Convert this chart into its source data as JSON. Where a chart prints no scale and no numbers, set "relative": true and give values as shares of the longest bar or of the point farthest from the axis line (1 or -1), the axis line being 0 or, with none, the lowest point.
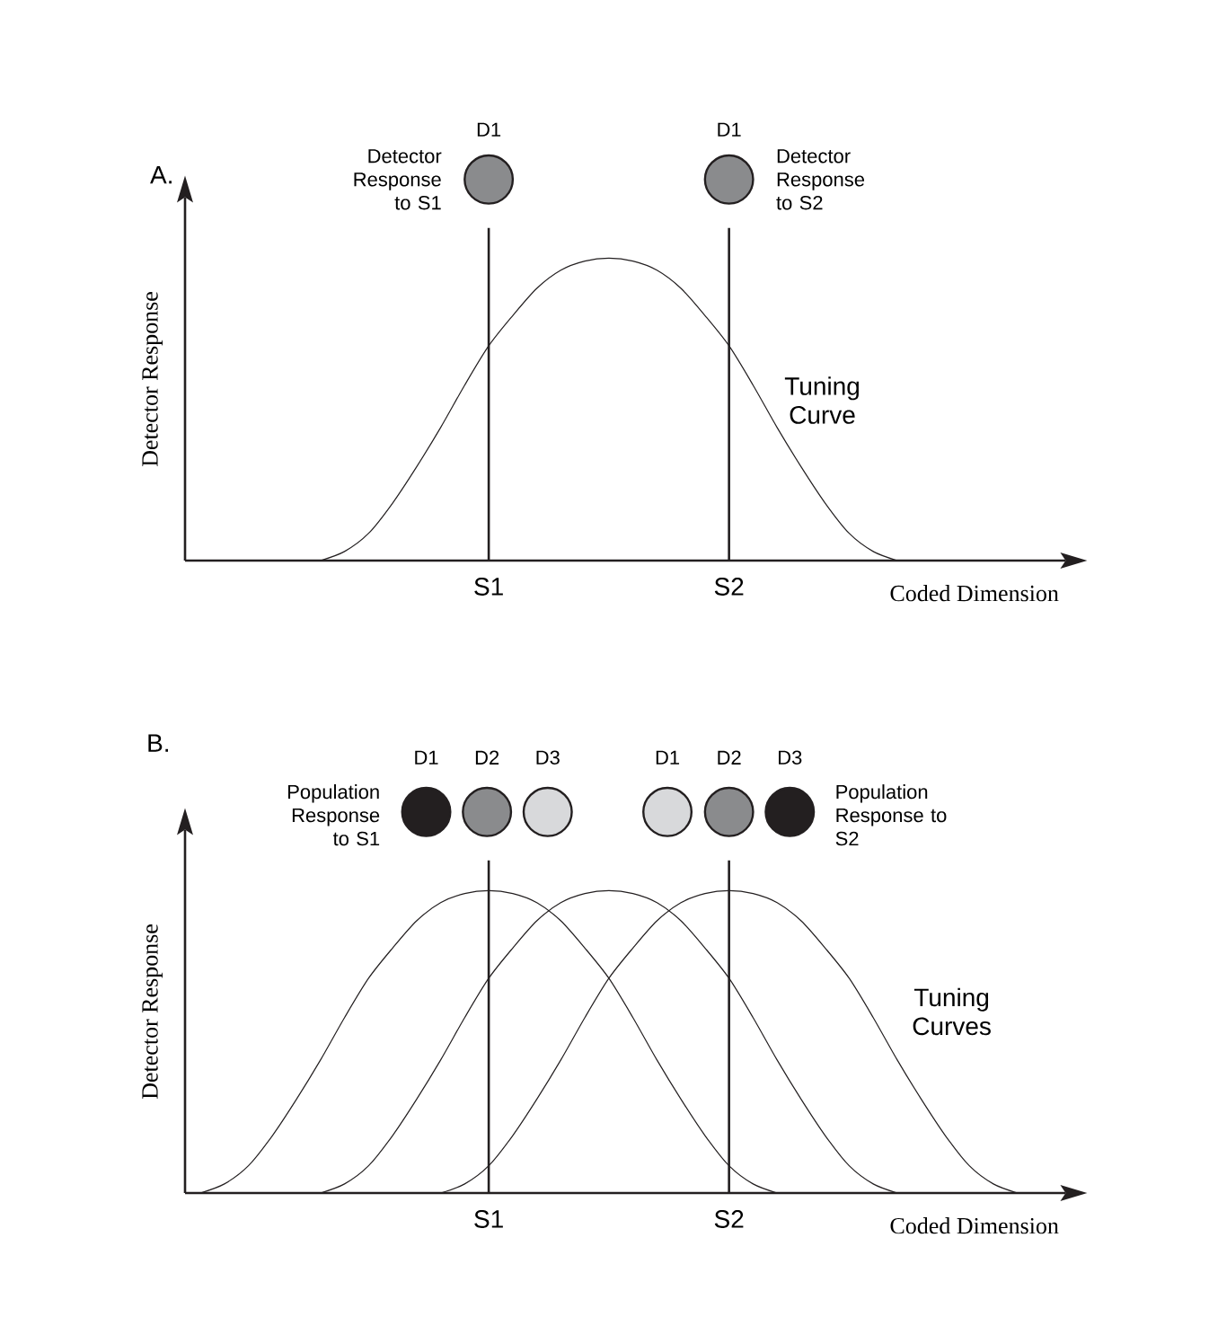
{
  "chart_data": [
    {
      "type": "line",
      "relative": true,
      "title": "A.",
      "xlabel": "Coded Dimension",
      "ylabel": "Detector Response",
      "categories": [
        null,
        null,
        null,
        null,
        null,
        null,
        null,
        null,
        null,
        null,
        null,
        null,
        null,
        "S1",
        null,
        null,
        null,
        null,
        null,
        null,
        null,
        null,
        null,
        "S2",
        null,
        null,
        null,
        null,
        null,
        null,
        null,
        null,
        null,
        null,
        null,
        null,
        null
      ],
      "ref_lines": [
        {
          "axis": "x",
          "value": "S1",
          "color": "#231f20"
        },
        {
          "axis": "x",
          "value": "S2",
          "color": "#231f20"
        }
      ],
      "series": [
        {
          "color": "#231f20",
          "values": [
            null,
            null,
            null,
            null,
            null,
            null,
            0,
            0.03,
            0.09,
            0.19,
            0.31,
            0.44,
            0.58,
            0.71,
            0.81,
            0.9,
            0.96,
            0.99,
            1,
            0.99,
            0.96,
            0.9,
            0.81,
            0.71,
            0.58,
            0.44,
            0.31,
            0.19,
            0.09,
            0.03,
            0,
            null,
            null,
            null,
            null,
            null,
            null
          ]
        }
      ],
      "annotations": [
        "D1",
        "Detector Response to S1",
        "D1",
        "Detector Response to S2",
        "Tuning Curve"
      ]
    },
    {
      "type": "line",
      "relative": true,
      "title": "B.",
      "xlabel": "Coded Dimension",
      "ylabel": "Detector Response",
      "categories": [
        null,
        null,
        null,
        null,
        null,
        null,
        null,
        null,
        null,
        null,
        null,
        null,
        null,
        "S1",
        null,
        null,
        null,
        null,
        null,
        null,
        null,
        null,
        null,
        "S2",
        null,
        null,
        null,
        null,
        null,
        null,
        null,
        null,
        null,
        null,
        null,
        null,
        null
      ],
      "ref_lines": [
        {
          "axis": "x",
          "value": "S1",
          "color": "#231f20"
        },
        {
          "axis": "x",
          "value": "S2",
          "color": "#231f20"
        }
      ],
      "series": [
        {
          "color": "#231f20",
          "values": [
            null,
            0,
            0.03,
            0.09,
            0.19,
            0.31,
            0.44,
            0.58,
            0.71,
            0.81,
            0.9,
            0.96,
            0.99,
            1,
            0.99,
            0.96,
            0.9,
            0.81,
            0.71,
            0.58,
            0.44,
            0.31,
            0.19,
            0.09,
            0.03,
            0,
            null,
            null,
            null,
            null,
            null,
            null,
            null,
            null,
            null,
            null,
            null
          ]
        },
        {
          "color": "#231f20",
          "values": [
            null,
            null,
            null,
            null,
            null,
            null,
            0,
            0.03,
            0.09,
            0.19,
            0.31,
            0.44,
            0.58,
            0.71,
            0.81,
            0.9,
            0.96,
            0.99,
            1,
            0.99,
            0.96,
            0.9,
            0.81,
            0.71,
            0.58,
            0.44,
            0.31,
            0.19,
            0.09,
            0.03,
            0,
            null,
            null,
            null,
            null,
            null,
            null
          ]
        },
        {
          "color": "#231f20",
          "values": [
            null,
            null,
            null,
            null,
            null,
            null,
            null,
            null,
            null,
            null,
            null,
            0,
            0.03,
            0.09,
            0.19,
            0.31,
            0.44,
            0.58,
            0.71,
            0.81,
            0.9,
            0.96,
            0.99,
            1,
            0.99,
            0.96,
            0.9,
            0.81,
            0.71,
            0.58,
            0.44,
            0.31,
            0.19,
            0.09,
            0.03,
            0,
            null
          ]
        }
      ],
      "annotations": [
        "Population Response to S1",
        "D1",
        "D2",
        "D3",
        "D1",
        "D2",
        "D3",
        "Population Response to S2",
        "Tuning Curves"
      ]
    }
  ]
}
